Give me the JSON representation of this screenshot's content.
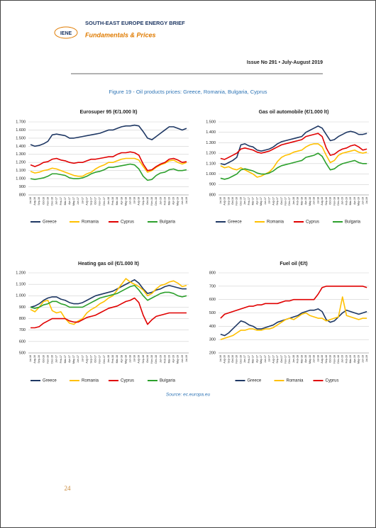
{
  "header": {
    "logo": "IENE",
    "brand": "SOUTH-EAST EUROPE ENERGY BRIEF",
    "section": "Fundamentals & Prices",
    "issue": "Issue No 291 • July-August 2019"
  },
  "figure_title": "Figure 19 - Oil products prices: Greece, Romania, Bulgaria, Cyprus",
  "source": "Source: ec.europa.eu",
  "page_number": "24",
  "chart_data": [
    {
      "type": "line",
      "title": "Eurosuper 95 (€/1.000 lt)",
      "categories": [
        "Jul-16",
        "Aug-16",
        "Sep-16",
        "Oct-16",
        "Nov-16",
        "Dec-16",
        "Jan-17",
        "Feb-17",
        "Mar-17",
        "Apr-17",
        "May-17",
        "Jun-17",
        "Jul-17",
        "Aug-17",
        "Sep-17",
        "Oct-17",
        "Nov-17",
        "Dec-17",
        "Jan-18",
        "Feb-18",
        "Mar-18",
        "Apr-18",
        "May-18",
        "Jun-18",
        "Jul-18",
        "Aug-18",
        "Sep-18",
        "Oct-18",
        "Nov-18",
        "Dec-18",
        "Jan-19",
        "Feb-19",
        "Mar-19",
        "Apr-19",
        "May-19",
        "Jun-19",
        "Jul-19"
      ],
      "ylim": [
        800,
        1700
      ],
      "yticks": [
        800,
        900,
        {
          "value": 1000,
          "label": "1.000"
        },
        {
          "value": 1100,
          "label": "1.100"
        },
        {
          "value": 1200,
          "label": "1.200"
        },
        {
          "value": 1300,
          "label": "1.300"
        },
        {
          "value": 1400,
          "label": "1.400"
        },
        {
          "value": 1500,
          "label": "1.500"
        },
        {
          "value": 1600,
          "label": "1.600"
        },
        {
          "value": 1700,
          "label": "1.700"
        }
      ],
      "grid": true,
      "series": [
        {
          "name": "Greece",
          "color": "#1f3864",
          "values": [
            1420,
            1400,
            1410,
            1430,
            1460,
            1540,
            1550,
            1540,
            1530,
            1500,
            1500,
            1510,
            1520,
            1530,
            1540,
            1550,
            1560,
            1580,
            1600,
            1600,
            1620,
            1640,
            1650,
            1650,
            1660,
            1650,
            1580,
            1500,
            1480,
            1520,
            1560,
            1600,
            1640,
            1640,
            1620,
            1600,
            1620
          ]
        },
        {
          "name": "Romania",
          "color": "#ffc000",
          "values": [
            1090,
            1070,
            1080,
            1100,
            1110,
            1130,
            1120,
            1100,
            1080,
            1060,
            1040,
            1030,
            1030,
            1060,
            1080,
            1120,
            1150,
            1170,
            1200,
            1200,
            1220,
            1240,
            1250,
            1250,
            1250,
            1230,
            1150,
            1080,
            1100,
            1140,
            1170,
            1190,
            1220,
            1230,
            1200,
            1180,
            1200
          ]
        },
        {
          "name": "Cyprus",
          "color": "#e00000",
          "values": [
            1170,
            1150,
            1170,
            1200,
            1210,
            1240,
            1250,
            1230,
            1220,
            1200,
            1190,
            1200,
            1200,
            1220,
            1240,
            1240,
            1250,
            1260,
            1270,
            1270,
            1300,
            1320,
            1320,
            1330,
            1320,
            1290,
            1180,
            1100,
            1110,
            1150,
            1180,
            1200,
            1240,
            1250,
            1230,
            1200,
            1210
          ]
        },
        {
          "name": "Bulgaria",
          "color": "#2ca02c",
          "values": [
            1000,
            990,
            1000,
            1010,
            1030,
            1060,
            1060,
            1050,
            1040,
            1010,
            1000,
            1000,
            1010,
            1030,
            1060,
            1080,
            1090,
            1110,
            1140,
            1140,
            1150,
            1160,
            1170,
            1180,
            1170,
            1120,
            1030,
            980,
            990,
            1040,
            1070,
            1080,
            1110,
            1120,
            1100,
            1100,
            1110
          ]
        }
      ]
    },
    {
      "type": "line",
      "title": "Gas oil automobile (€/1.000 lt)",
      "categories": [
        "Jul-16",
        "Aug-16",
        "Sep-16",
        "Oct-16",
        "Nov-16",
        "Dec-16",
        "Jan-17",
        "Feb-17",
        "Mar-17",
        "Apr-17",
        "May-17",
        "Jun-17",
        "Jul-17",
        "Aug-17",
        "Sep-17",
        "Oct-17",
        "Nov-17",
        "Dec-17",
        "Jan-18",
        "Feb-18",
        "Mar-18",
        "Apr-18",
        "May-18",
        "Jun-18",
        "Jul-18",
        "Aug-18",
        "Sep-18",
        "Oct-18",
        "Nov-18",
        "Dec-18",
        "Jan-19",
        "Feb-19",
        "Mar-19",
        "Apr-19",
        "May-19",
        "Jun-19",
        "Jul-19"
      ],
      "ylim": [
        800,
        1500
      ],
      "yticks": [
        800,
        900,
        {
          "value": 1000,
          "label": "1.000"
        },
        {
          "value": 1100,
          "label": "1.100"
        },
        {
          "value": 1200,
          "label": "1.200"
        },
        {
          "value": 1300,
          "label": "1.300"
        },
        {
          "value": 1400,
          "label": "1.400"
        },
        {
          "value": 1500,
          "label": "1.500"
        }
      ],
      "grid": true,
      "series": [
        {
          "name": "Greece",
          "color": "#1f3864",
          "values": [
            1100,
            1090,
            1110,
            1130,
            1160,
            1280,
            1290,
            1270,
            1260,
            1230,
            1220,
            1230,
            1240,
            1260,
            1290,
            1310,
            1320,
            1330,
            1340,
            1350,
            1360,
            1400,
            1420,
            1440,
            1460,
            1440,
            1380,
            1320,
            1330,
            1360,
            1380,
            1400,
            1410,
            1400,
            1380,
            1380,
            1390
          ]
        },
        {
          "name": "Romania",
          "color": "#ffc000",
          "values": [
            1080,
            1060,
            1070,
            1050,
            1040,
            1060,
            1040,
            1020,
            1000,
            970,
            980,
            1000,
            1020,
            1060,
            1120,
            1160,
            1180,
            1190,
            1210,
            1220,
            1230,
            1260,
            1280,
            1290,
            1290,
            1260,
            1180,
            1110,
            1130,
            1180,
            1200,
            1210,
            1220,
            1230,
            1210,
            1200,
            1210
          ]
        },
        {
          "name": "Cyprus",
          "color": "#e00000",
          "values": [
            1150,
            1140,
            1160,
            1180,
            1200,
            1240,
            1250,
            1240,
            1230,
            1210,
            1200,
            1210,
            1220,
            1240,
            1260,
            1280,
            1290,
            1300,
            1310,
            1320,
            1330,
            1360,
            1370,
            1380,
            1390,
            1360,
            1250,
            1180,
            1190,
            1220,
            1240,
            1250,
            1270,
            1280,
            1260,
            1230,
            1240
          ]
        },
        {
          "name": "Bulgaria",
          "color": "#2ca02c",
          "values": [
            960,
            950,
            960,
            980,
            1000,
            1040,
            1050,
            1040,
            1030,
            1010,
            1000,
            1000,
            1010,
            1030,
            1060,
            1080,
            1090,
            1100,
            1110,
            1120,
            1130,
            1160,
            1170,
            1180,
            1200,
            1170,
            1100,
            1040,
            1050,
            1080,
            1100,
            1110,
            1120,
            1130,
            1110,
            1100,
            1100
          ]
        }
      ]
    },
    {
      "type": "line",
      "title": "Heating gas oil (€/1.000 lt)",
      "categories": [
        "Jul-16",
        "Aug-16",
        "Sep-16",
        "Oct-16",
        "Nov-16",
        "Dec-16",
        "Jan-17",
        "Feb-17",
        "Mar-17",
        "Apr-17",
        "May-17",
        "Jun-17",
        "Jul-17",
        "Aug-17",
        "Sep-17",
        "Oct-17",
        "Nov-17",
        "Dec-17",
        "Jan-18",
        "Feb-18",
        "Mar-18",
        "Apr-18",
        "May-18",
        "Jun-18",
        "Jul-18",
        "Aug-18",
        "Sep-18",
        "Oct-18",
        "Nov-18",
        "Dec-18",
        "Jan-19",
        "Feb-19",
        "Mar-19",
        "Apr-19",
        "May-19",
        "Jun-19",
        "Jul-19"
      ],
      "ylim": [
        500,
        1200
      ],
      "yticks": [
        500,
        600,
        700,
        800,
        900,
        {
          "value": 1000,
          "label": "1.000"
        },
        {
          "value": 1100,
          "label": "1.100"
        },
        {
          "value": 1200,
          "label": "1.200"
        }
      ],
      "grid": true,
      "series": [
        {
          "name": "Greece",
          "color": "#1f3864",
          "values": [
            900,
            910,
            930,
            960,
            980,
            990,
            990,
            970,
            960,
            940,
            930,
            930,
            940,
            960,
            980,
            1000,
            1010,
            1020,
            1030,
            1040,
            1060,
            1080,
            1100,
            1120,
            1140,
            1110,
            1060,
            1020,
            1030,
            1050,
            1060,
            1080,
            1090,
            1080,
            1070,
            1060,
            1060
          ]
        },
        {
          "name": "Romania",
          "color": "#ffc000",
          "values": [
            880,
            860,
            900,
            950,
            960,
            870,
            850,
            860,
            800,
            760,
            750,
            780,
            800,
            850,
            880,
            900,
            930,
            950,
            980,
            1000,
            1050,
            1100,
            1150,
            1120,
            1100,
            1080,
            1050,
            1000,
            1020,
            1060,
            1090,
            1100,
            1120,
            1130,
            1110,
            1080,
            1090
          ]
        },
        {
          "name": "Cyprus",
          "color": "#e00000",
          "values": [
            720,
            720,
            730,
            760,
            780,
            800,
            800,
            800,
            800,
            780,
            770,
            770,
            790,
            810,
            820,
            830,
            850,
            870,
            890,
            900,
            910,
            930,
            950,
            960,
            980,
            940,
            830,
            750,
            790,
            820,
            830,
            840,
            850,
            850,
            850,
            850,
            850
          ]
        },
        {
          "name": "Bulgaria",
          "color": "#2ca02c",
          "values": [
            900,
            890,
            900,
            920,
            930,
            950,
            950,
            930,
            920,
            900,
            900,
            900,
            900,
            920,
            940,
            960,
            980,
            990,
            1000,
            1010,
            1020,
            1040,
            1060,
            1080,
            1090,
            1050,
            1000,
            960,
            980,
            1000,
            1020,
            1030,
            1030,
            1020,
            1000,
            990,
            1000
          ]
        }
      ]
    },
    {
      "type": "line",
      "title": "Fuel oil (€/t)",
      "categories": [
        "Jul-16",
        "Aug-16",
        "Sep-16",
        "Oct-16",
        "Nov-16",
        "Dec-16",
        "Jan-17",
        "Feb-17",
        "Mar-17",
        "Apr-17",
        "May-17",
        "Jun-17",
        "Jul-17",
        "Aug-17",
        "Sep-17",
        "Oct-17",
        "Nov-17",
        "Dec-17",
        "Jan-18",
        "Feb-18",
        "Mar-18",
        "Apr-18",
        "May-18",
        "Jun-18",
        "Jul-18",
        "Aug-18",
        "Sep-18",
        "Oct-18",
        "Nov-18",
        "Dec-18",
        "Jan-19",
        "Feb-19",
        "Mar-19",
        "Apr-19",
        "May-19",
        "Jun-19",
        "Jul-19"
      ],
      "ylim": [
        200,
        800
      ],
      "yticks": [
        200,
        300,
        400,
        500,
        600,
        700,
        800
      ],
      "grid": true,
      "series": [
        {
          "name": "Greece",
          "color": "#1f3864",
          "values": [
            340,
            330,
            350,
            380,
            410,
            440,
            430,
            410,
            400,
            380,
            380,
            390,
            400,
            410,
            430,
            440,
            450,
            460,
            470,
            480,
            500,
            510,
            520,
            520,
            530,
            510,
            450,
            430,
            440,
            470,
            500,
            520,
            510,
            500,
            490,
            500,
            510
          ]
        },
        {
          "name": "Romania",
          "color": "#ffc000",
          "values": [
            300,
            310,
            320,
            330,
            350,
            370,
            370,
            380,
            380,
            370,
            370,
            380,
            380,
            390,
            410,
            430,
            450,
            460,
            450,
            470,
            490,
            500,
            480,
            470,
            460,
            460,
            440,
            450,
            460,
            470,
            620,
            480,
            470,
            460,
            450,
            460,
            460
          ]
        },
        {
          "name": "Cyprus",
          "color": "#e00000",
          "values": [
            460,
            490,
            500,
            510,
            520,
            530,
            540,
            550,
            550,
            560,
            560,
            570,
            570,
            570,
            570,
            580,
            590,
            590,
            600,
            600,
            600,
            600,
            600,
            600,
            640,
            690,
            700,
            700,
            700,
            700,
            700,
            700,
            700,
            700,
            700,
            700,
            690
          ]
        }
      ]
    }
  ]
}
